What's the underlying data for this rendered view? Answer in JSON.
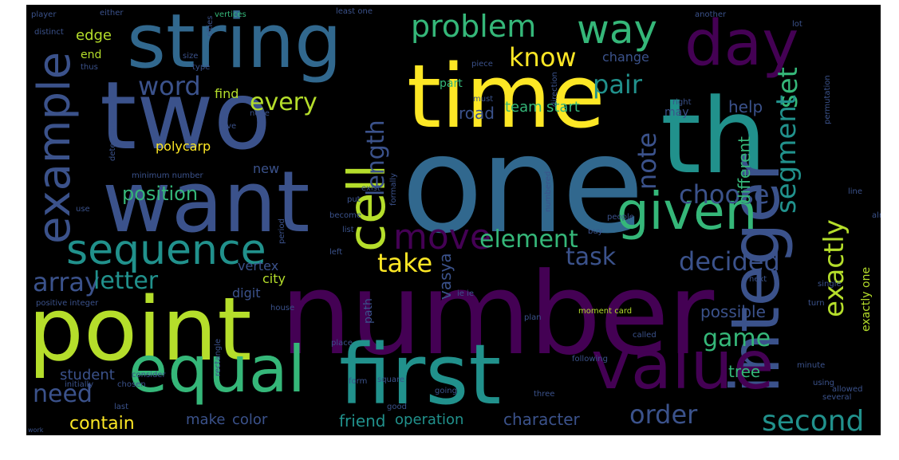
{
  "palette": {
    "background": "#000000",
    "purple": "#440154",
    "indigo": "#3b528b",
    "blue": "#31688e",
    "teal": "#21918c",
    "green": "#35b779",
    "lime": "#b5de2b",
    "yellow": "#fde725"
  },
  "words": {
    "number": "number",
    "one": "one",
    "time": "time",
    "two": "two",
    "string": "string",
    "want": "want",
    "th": "th",
    "point": "point",
    "integer": "integer",
    "first": "first",
    "equal": "equal",
    "value": "value",
    "day": "day",
    "cell": "cell",
    "given": "given",
    "example": "example",
    "sequence": "sequence",
    "way": "way",
    "move": "move",
    "problem": "problem",
    "know": "know",
    "word": "word",
    "every": "every",
    "length": "length",
    "pair": "pair",
    "set": "set",
    "segment": "segment",
    "note": "note",
    "choose": "choose",
    "element": "element",
    "task": "task",
    "take": "take",
    "decided": "decided",
    "exactly": "exactly",
    "array": "array",
    "letter": "letter",
    "position": "position",
    "game": "game",
    "second": "second",
    "order": "order",
    "need": "need",
    "contain": "contain",
    "edge": "edge",
    "help": "help",
    "different": "different",
    "tree": "tree",
    "possible": "possible",
    "student": "student",
    "character": "character",
    "friend": "friend",
    "operation": "operation",
    "vasya": "vasya",
    "vertex": "vertex",
    "city": "city",
    "digit": "digit",
    "make": "make",
    "color": "color",
    "road": "road",
    "team": "team",
    "start": "start",
    "polycarp": "polycarp",
    "new": "new",
    "find": "find",
    "part": "part",
    "change": "change",
    "end": "end",
    "may": "may",
    "exactly_one": "exactly one",
    "path": "path",
    "player": "player",
    "either": "either",
    "vertices": "vertices",
    "least_one": "least one",
    "another": "another",
    "distinct": "distinct",
    "positive_integer": "positive integer",
    "minimum_number": "minimum number",
    "moment_card": "moment card",
    "initially": "initially",
    "form": "form",
    "square": "square",
    "following": "following",
    "consider": "consider",
    "chosen": "chosen",
    "place": "place",
    "plan": "plan",
    "minute": "minute",
    "turn": "turn",
    "using": "using",
    "allowed": "allowed",
    "several": "several",
    "three": "three",
    "good": "good",
    "going": "going",
    "last": "last",
    "called": "called",
    "single": "single",
    "already": "already",
    "next": "next",
    "people": "people",
    "buy": "buy",
    "exist": "exist",
    "formally": "formally",
    "numbered": "numbered",
    "put": "put",
    "become": "become",
    "list": "list",
    "use": "use",
    "left": "left",
    "house": "house",
    "rectangle": "rectangle",
    "work": "work",
    "size": "size",
    "type": "type",
    "give": "give",
    "node": "node",
    "must": "must",
    "piece": "piece",
    "right": "right",
    "line": "line",
    "determine": "determine",
    "direction": "direction",
    "permutation": "permutation",
    "period": "period",
    "cities": "cities",
    "thus": "thus",
    "lot": "lot",
    "ie_ie": "ie ie"
  }
}
